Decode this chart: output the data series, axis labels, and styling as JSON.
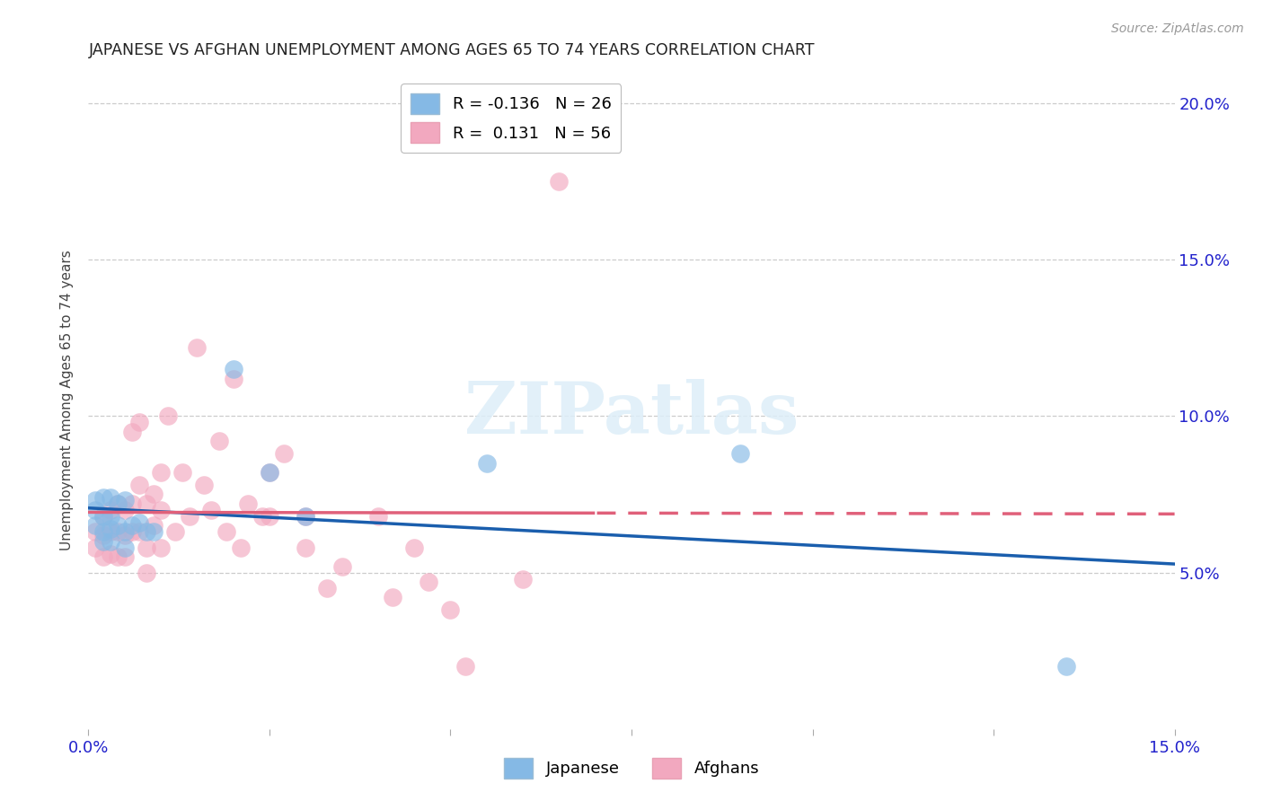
{
  "title": "JAPANESE VS AFGHAN UNEMPLOYMENT AMONG AGES 65 TO 74 YEARS CORRELATION CHART",
  "source": "Source: ZipAtlas.com",
  "ylabel_label": "Unemployment Among Ages 65 to 74 years",
  "xlim": [
    0.0,
    0.15
  ],
  "ylim": [
    0.0,
    0.21
  ],
  "x_ticks_labeled": [
    0.0,
    0.15
  ],
  "y_ticks_right": [
    0.05,
    0.1,
    0.15,
    0.2
  ],
  "x_ticks_minor": [
    0.025,
    0.05,
    0.075,
    0.1,
    0.125
  ],
  "legend_japanese": "R = -0.136   N = 26",
  "legend_afghans": "R =  0.131   N = 56",
  "japanese_color": "#85B9E5",
  "afghan_color": "#F2A8BF",
  "japanese_line_color": "#1A5EAD",
  "afghan_line_color": "#E0607A",
  "afghan_line_dash_start": 0.07,
  "watermark_text": "ZIPatlas",
  "japanese_x": [
    0.001,
    0.001,
    0.001,
    0.002,
    0.002,
    0.002,
    0.002,
    0.003,
    0.003,
    0.003,
    0.003,
    0.004,
    0.004,
    0.005,
    0.005,
    0.005,
    0.006,
    0.007,
    0.008,
    0.009,
    0.02,
    0.025,
    0.03,
    0.055,
    0.09,
    0.135
  ],
  "japanese_y": [
    0.07,
    0.073,
    0.065,
    0.074,
    0.068,
    0.063,
    0.06,
    0.074,
    0.068,
    0.064,
    0.06,
    0.072,
    0.065,
    0.073,
    0.063,
    0.058,
    0.065,
    0.066,
    0.063,
    0.063,
    0.115,
    0.082,
    0.068,
    0.085,
    0.088,
    0.02
  ],
  "afghan_x": [
    0.001,
    0.001,
    0.002,
    0.002,
    0.002,
    0.003,
    0.003,
    0.003,
    0.004,
    0.004,
    0.004,
    0.005,
    0.005,
    0.005,
    0.006,
    0.006,
    0.006,
    0.007,
    0.007,
    0.007,
    0.008,
    0.008,
    0.008,
    0.009,
    0.009,
    0.01,
    0.01,
    0.01,
    0.011,
    0.012,
    0.013,
    0.014,
    0.015,
    0.016,
    0.017,
    0.018,
    0.019,
    0.02,
    0.021,
    0.022,
    0.024,
    0.025,
    0.025,
    0.027,
    0.03,
    0.03,
    0.033,
    0.035,
    0.04,
    0.042,
    0.045,
    0.047,
    0.05,
    0.052,
    0.06,
    0.065
  ],
  "afghan_y": [
    0.063,
    0.058,
    0.068,
    0.062,
    0.055,
    0.07,
    0.063,
    0.056,
    0.072,
    0.063,
    0.055,
    0.07,
    0.062,
    0.055,
    0.095,
    0.072,
    0.063,
    0.098,
    0.078,
    0.063,
    0.072,
    0.058,
    0.05,
    0.075,
    0.065,
    0.07,
    0.082,
    0.058,
    0.1,
    0.063,
    0.082,
    0.068,
    0.122,
    0.078,
    0.07,
    0.092,
    0.063,
    0.112,
    0.058,
    0.072,
    0.068,
    0.082,
    0.068,
    0.088,
    0.068,
    0.058,
    0.045,
    0.052,
    0.068,
    0.042,
    0.058,
    0.047,
    0.038,
    0.02,
    0.048,
    0.175
  ]
}
